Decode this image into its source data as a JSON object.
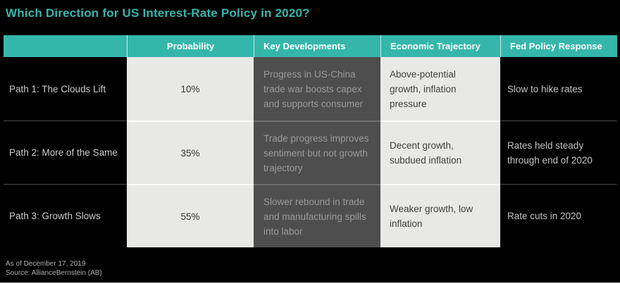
{
  "colors": {
    "accent_teal": "#35b6ab",
    "light_cell": "#e8e8e7",
    "dark_cell": "#4e4e4e",
    "background": "#000000"
  },
  "chart_data": {
    "type": "table",
    "title": "Which Direction for US Interest-Rate Policy in 2020?",
    "columns": [
      "",
      "Probability",
      "Key Developments",
      "Economic Trajectory",
      "Fed Policy Response"
    ],
    "rows": [
      [
        "Path 1: The Clouds Lift",
        "10%",
        "Progress in US-China trade war boosts capex and supports consumer",
        "Above-potential growth, inflation pressure",
        "Slow to hike rates"
      ],
      [
        "Path 2: More of the Same",
        "35%",
        "Trade progress improves sentiment but not growth trajectory",
        "Decent growth, subdued inflation",
        "Rates held steady through end of 2020"
      ],
      [
        "Path 3: Growth Slows",
        "55%",
        "Slower rebound in trade and manufacturing spills into labor",
        "Weaker growth, low inflation",
        "Rate cuts in 2020"
      ]
    ],
    "notes": [
      "As of December 17, 2019",
      "Source: AllianceBernstein (AB)"
    ]
  }
}
